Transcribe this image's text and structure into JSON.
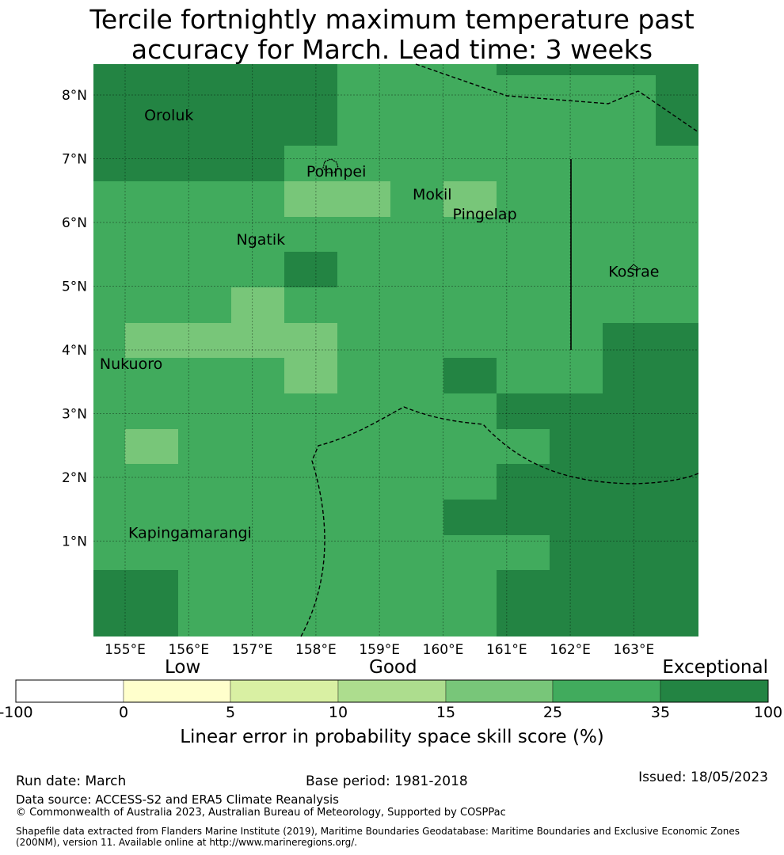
{
  "title_line1": "Tercile fortnightly maximum temperature past",
  "title_line2": "accuracy for March. Lead time: 3 weeks",
  "map": {
    "lon_ticks": [
      "155°E",
      "156°E",
      "157°E",
      "158°E",
      "159°E",
      "160°E",
      "161°E",
      "162°E",
      "163°E"
    ],
    "lat_ticks": [
      "8°N",
      "7°N",
      "6°N",
      "5°N",
      "4°N",
      "3°N",
      "2°N",
      "1°N"
    ],
    "places": [
      {
        "name": "Oroluk",
        "lon": 155.3,
        "lat": 7.6
      },
      {
        "name": "Pohnpei",
        "lon": 157.85,
        "lat": 6.72
      },
      {
        "name": "Mokil",
        "lon": 159.52,
        "lat": 6.36
      },
      {
        "name": "Pingelap",
        "lon": 160.15,
        "lat": 6.05
      },
      {
        "name": "Ngatik",
        "lon": 156.75,
        "lat": 5.65
      },
      {
        "name": "Kosrae",
        "lon": 162.6,
        "lat": 5.15
      },
      {
        "name": "Nukuoro",
        "lon": 154.6,
        "lat": 3.7
      },
      {
        "name": "Kapingamarangi",
        "lon": 155.05,
        "lat": 1.05
      }
    ]
  },
  "colorbar": {
    "categories": [
      {
        "label": "Low"
      },
      {
        "label": "Good"
      },
      {
        "label": "Exceptional"
      }
    ],
    "ticks": [
      "-100",
      "0",
      "5",
      "10",
      "15",
      "25",
      "35",
      "100"
    ],
    "colors": [
      "#ffffff",
      "#ffffcc",
      "#d9f0a3",
      "#addd8e",
      "#78c679",
      "#41ab5d",
      "#238443"
    ],
    "label": "Linear error in probability space skill score (%)"
  },
  "footer": {
    "run_date": "Run date: March",
    "base_period": "Base period: 1981-2018",
    "issued": "Issued: 18/05/2023",
    "data_source": "Data source: ACCESS-S2 and ERA5 Climate Reanalysis",
    "copyright": "© Commonwealth of Australia 2023, Australian Bureau of Meteorology, Supported by COSPPac",
    "shapefile_line1": "Shapefile data extracted from Flanders Marine Institute (2019), Maritime Boundaries Geodatabase: Maritime Boundaries and Exclusive Economic Zones",
    "shapefile_line2": "(200NM), version 11. Available online at http://www.marineregions.org/."
  }
}
